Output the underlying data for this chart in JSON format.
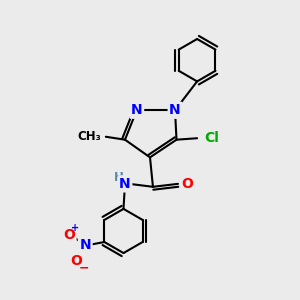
{
  "background_color": "#ebebeb",
  "bond_color": "#000000",
  "bond_width": 1.5,
  "atom_colors": {
    "N": "#0000ff",
    "O": "#ff0000",
    "Cl": "#00aa00",
    "C": "#000000",
    "H": "#5588aa"
  },
  "font_size_atoms": 10,
  "font_size_small": 8.5
}
